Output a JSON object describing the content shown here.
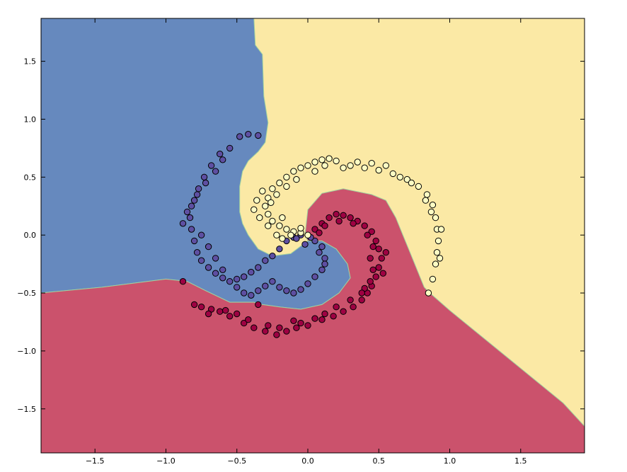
{
  "chart_data": {
    "type": "scatter",
    "title": "",
    "xlabel": "",
    "ylabel": "",
    "xlim": [
      -1.88,
      1.95
    ],
    "ylim": [
      -1.88,
      1.87
    ],
    "xticks": [
      -1.5,
      -1.0,
      -0.5,
      0.0,
      0.5,
      1.0,
      1.5
    ],
    "xtick_labels": [
      "−1.5",
      "−1.0",
      "−0.5",
      "0.0",
      "0.5",
      "1.0",
      "1.5"
    ],
    "yticks": [
      1.5,
      1.0,
      0.5,
      0.0,
      -0.5,
      -1.0,
      -1.5
    ],
    "ytick_labels": [
      "1.5",
      "1.0",
      "0.5",
      "0.0",
      "−0.5",
      "−1.0",
      "−1.5"
    ],
    "grid": false,
    "legend": "none",
    "classes": [
      {
        "point_color": "#5e4fa2",
        "region_color": "#6689be"
      },
      {
        "point_color": "#fdfdc4",
        "region_color": "#fbe9a5"
      },
      {
        "point_color": "#9e0142",
        "region_color": "#cb526c"
      }
    ],
    "decision_regions": {
      "blue": [
        [
          -1.88,
          1.87
        ],
        [
          -0.38,
          1.87
        ],
        [
          -0.37,
          1.64
        ],
        [
          -0.32,
          1.56
        ],
        [
          -0.31,
          1.2
        ],
        [
          -0.28,
          0.97
        ],
        [
          -0.3,
          0.8
        ],
        [
          -0.35,
          0.72
        ],
        [
          -0.42,
          0.64
        ],
        [
          -0.46,
          0.55
        ],
        [
          -0.48,
          0.42
        ],
        [
          -0.48,
          0.2
        ],
        [
          -0.46,
          0.1
        ],
        [
          -0.42,
          0.0
        ],
        [
          -0.35,
          -0.12
        ],
        [
          -0.25,
          -0.18
        ],
        [
          -0.12,
          -0.16
        ],
        [
          0.0,
          -0.05
        ],
        [
          0.1,
          -0.05
        ],
        [
          0.2,
          -0.12
        ],
        [
          0.28,
          -0.25
        ],
        [
          0.3,
          -0.37
        ],
        [
          0.22,
          -0.5
        ],
        [
          0.1,
          -0.6
        ],
        [
          -0.05,
          -0.64
        ],
        [
          -0.2,
          -0.62
        ],
        [
          -0.32,
          -0.6
        ],
        [
          -0.38,
          -0.58
        ],
        [
          -0.55,
          -0.58
        ],
        [
          -0.72,
          -0.48
        ],
        [
          -0.85,
          -0.4
        ],
        [
          -1.0,
          -0.38
        ],
        [
          -1.45,
          -0.45
        ],
        [
          -1.88,
          -0.5
        ]
      ],
      "red": [
        [
          -1.88,
          -0.5
        ],
        [
          -1.45,
          -0.45
        ],
        [
          -1.0,
          -0.38
        ],
        [
          -0.85,
          -0.4
        ],
        [
          -0.72,
          -0.48
        ],
        [
          -0.55,
          -0.58
        ],
        [
          -0.38,
          -0.58
        ],
        [
          -0.32,
          -0.6
        ],
        [
          -0.2,
          -0.62
        ],
        [
          -0.05,
          -0.64
        ],
        [
          0.1,
          -0.6
        ],
        [
          0.22,
          -0.5
        ],
        [
          0.3,
          -0.37
        ],
        [
          0.28,
          -0.25
        ],
        [
          0.2,
          -0.12
        ],
        [
          0.1,
          -0.05
        ],
        [
          0.0,
          -0.05
        ],
        [
          -0.02,
          0.0
        ],
        [
          0.0,
          0.22
        ],
        [
          0.1,
          0.36
        ],
        [
          0.25,
          0.4
        ],
        [
          0.45,
          0.35
        ],
        [
          0.55,
          0.3
        ],
        [
          0.62,
          0.15
        ],
        [
          0.67,
          0.0
        ],
        [
          0.72,
          -0.15
        ],
        [
          0.77,
          -0.3
        ],
        [
          0.82,
          -0.45
        ],
        [
          0.86,
          -0.5
        ],
        [
          1.0,
          -0.65
        ],
        [
          1.2,
          -0.85
        ],
        [
          1.5,
          -1.15
        ],
        [
          1.8,
          -1.45
        ],
        [
          1.95,
          -1.65
        ],
        [
          1.95,
          -1.88
        ],
        [
          -1.88,
          -1.88
        ]
      ]
    },
    "series": [
      {
        "name": "",
        "class_index": 0,
        "points": [
          [
            -0.05,
            0.0
          ],
          [
            -0.1,
            -0.02
          ],
          [
            -0.15,
            -0.05
          ],
          [
            -0.2,
            -0.12
          ],
          [
            -0.25,
            -0.18
          ],
          [
            -0.3,
            -0.22
          ],
          [
            -0.35,
            -0.28
          ],
          [
            -0.4,
            -0.32
          ],
          [
            -0.45,
            -0.36
          ],
          [
            -0.5,
            -0.38
          ],
          [
            -0.55,
            -0.4
          ],
          [
            -0.6,
            -0.37
          ],
          [
            -0.65,
            -0.33
          ],
          [
            -0.7,
            -0.28
          ],
          [
            -0.75,
            -0.22
          ],
          [
            -0.78,
            -0.15
          ],
          [
            -0.8,
            -0.05
          ],
          [
            -0.82,
            0.05
          ],
          [
            -0.83,
            0.15
          ],
          [
            -0.82,
            0.25
          ],
          [
            -0.78,
            0.35
          ],
          [
            -0.72,
            0.45
          ],
          [
            -0.65,
            0.55
          ],
          [
            -0.6,
            0.65
          ],
          [
            -0.55,
            0.75
          ],
          [
            -0.48,
            0.85
          ],
          [
            -0.42,
            0.87
          ],
          [
            -0.35,
            0.86
          ],
          [
            -0.62,
            0.7
          ],
          [
            -0.68,
            0.6
          ],
          [
            -0.73,
            0.5
          ],
          [
            -0.77,
            0.4
          ],
          [
            -0.8,
            0.3
          ],
          [
            -0.85,
            0.2
          ],
          [
            -0.88,
            0.1
          ],
          [
            -0.75,
            0.0
          ],
          [
            -0.7,
            -0.1
          ],
          [
            -0.65,
            -0.2
          ],
          [
            -0.6,
            -0.3
          ],
          [
            -0.5,
            -0.45
          ],
          [
            -0.45,
            -0.5
          ],
          [
            -0.4,
            -0.52
          ],
          [
            -0.35,
            -0.48
          ],
          [
            -0.3,
            -0.44
          ],
          [
            -0.25,
            -0.4
          ],
          [
            -0.2,
            -0.45
          ],
          [
            -0.15,
            -0.48
          ],
          [
            -0.1,
            -0.5
          ],
          [
            -0.05,
            -0.47
          ],
          [
            0.0,
            -0.42
          ],
          [
            0.05,
            -0.36
          ],
          [
            0.1,
            -0.3
          ],
          [
            0.12,
            -0.2
          ],
          [
            0.1,
            -0.1
          ],
          [
            0.05,
            -0.05
          ],
          [
            0.02,
            -0.02
          ],
          [
            -0.02,
            -0.08
          ],
          [
            -0.08,
            -0.03
          ],
          [
            0.08,
            -0.15
          ],
          [
            0.12,
            -0.25
          ]
        ]
      },
      {
        "name": "",
        "class_index": 1,
        "points": [
          [
            0.0,
            0.0
          ],
          [
            -0.05,
            0.02
          ],
          [
            -0.1,
            0.03
          ],
          [
            -0.15,
            0.05
          ],
          [
            -0.2,
            0.08
          ],
          [
            -0.25,
            0.12
          ],
          [
            -0.28,
            0.18
          ],
          [
            -0.3,
            0.25
          ],
          [
            -0.28,
            0.32
          ],
          [
            -0.25,
            0.4
          ],
          [
            -0.2,
            0.45
          ],
          [
            -0.15,
            0.5
          ],
          [
            -0.1,
            0.55
          ],
          [
            -0.05,
            0.58
          ],
          [
            0.0,
            0.6
          ],
          [
            0.05,
            0.63
          ],
          [
            0.1,
            0.65
          ],
          [
            0.15,
            0.66
          ],
          [
            0.2,
            0.64
          ],
          [
            0.3,
            0.6
          ],
          [
            0.4,
            0.58
          ],
          [
            0.5,
            0.56
          ],
          [
            0.6,
            0.53
          ],
          [
            0.7,
            0.48
          ],
          [
            0.78,
            0.42
          ],
          [
            0.84,
            0.35
          ],
          [
            0.88,
            0.26
          ],
          [
            0.9,
            0.15
          ],
          [
            0.91,
            0.05
          ],
          [
            0.92,
            -0.05
          ],
          [
            0.91,
            -0.15
          ],
          [
            0.9,
            -0.25
          ],
          [
            0.88,
            -0.38
          ],
          [
            0.85,
            -0.5
          ],
          [
            -0.32,
            0.38
          ],
          [
            -0.36,
            0.3
          ],
          [
            -0.38,
            0.22
          ],
          [
            -0.34,
            0.15
          ],
          [
            -0.28,
            0.08
          ],
          [
            -0.22,
            0.0
          ],
          [
            -0.18,
            -0.03
          ],
          [
            -0.12,
            0.0
          ],
          [
            0.05,
            0.55
          ],
          [
            0.12,
            0.6
          ],
          [
            0.25,
            0.58
          ],
          [
            0.35,
            0.63
          ],
          [
            0.45,
            0.62
          ],
          [
            0.55,
            0.6
          ],
          [
            0.65,
            0.5
          ],
          [
            0.73,
            0.45
          ],
          [
            -0.08,
            0.48
          ],
          [
            -0.15,
            0.42
          ],
          [
            -0.22,
            0.35
          ],
          [
            -0.26,
            0.28
          ],
          [
            0.83,
            0.3
          ],
          [
            0.87,
            0.2
          ],
          [
            0.94,
            0.05
          ],
          [
            0.93,
            -0.2
          ],
          [
            -0.05,
            0.06
          ],
          [
            -0.18,
            0.15
          ]
        ]
      },
      {
        "name": "",
        "class_index": 2,
        "points": [
          [
            0.05,
            0.05
          ],
          [
            0.1,
            0.1
          ],
          [
            0.15,
            0.15
          ],
          [
            0.2,
            0.18
          ],
          [
            0.25,
            0.17
          ],
          [
            0.3,
            0.15
          ],
          [
            0.35,
            0.12
          ],
          [
            0.4,
            0.08
          ],
          [
            0.45,
            0.03
          ],
          [
            0.48,
            -0.05
          ],
          [
            0.5,
            -0.12
          ],
          [
            0.52,
            -0.2
          ],
          [
            0.5,
            -0.28
          ],
          [
            0.48,
            -0.36
          ],
          [
            0.45,
            -0.44
          ],
          [
            0.42,
            -0.5
          ],
          [
            0.38,
            -0.56
          ],
          [
            0.32,
            -0.62
          ],
          [
            0.25,
            -0.66
          ],
          [
            0.18,
            -0.7
          ],
          [
            0.1,
            -0.73
          ],
          [
            0.0,
            -0.78
          ],
          [
            -0.08,
            -0.8
          ],
          [
            -0.15,
            -0.83
          ],
          [
            -0.22,
            -0.86
          ],
          [
            -0.3,
            -0.83
          ],
          [
            -0.38,
            -0.8
          ],
          [
            -0.45,
            -0.76
          ],
          [
            -0.55,
            -0.7
          ],
          [
            -0.62,
            -0.66
          ],
          [
            -0.68,
            -0.64
          ],
          [
            -0.75,
            -0.62
          ],
          [
            -0.8,
            -0.6
          ],
          [
            -0.88,
            -0.4
          ],
          [
            -0.35,
            -0.6
          ],
          [
            0.12,
            0.08
          ],
          [
            0.22,
            0.12
          ],
          [
            0.32,
            0.1
          ],
          [
            0.42,
            0.0
          ],
          [
            0.46,
            -0.1
          ],
          [
            0.44,
            -0.2
          ],
          [
            0.46,
            -0.3
          ],
          [
            0.44,
            -0.4
          ],
          [
            0.4,
            -0.46
          ],
          [
            0.3,
            -0.56
          ],
          [
            0.2,
            -0.62
          ],
          [
            0.12,
            -0.68
          ],
          [
            0.05,
            -0.72
          ],
          [
            -0.05,
            -0.76
          ],
          [
            -0.1,
            -0.74
          ],
          [
            -0.2,
            -0.8
          ],
          [
            -0.28,
            -0.78
          ],
          [
            -0.42,
            -0.73
          ],
          [
            -0.5,
            -0.68
          ],
          [
            -0.58,
            -0.65
          ],
          [
            -0.7,
            -0.68
          ],
          [
            0.55,
            -0.15
          ],
          [
            0.53,
            -0.33
          ],
          [
            0.08,
            0.02
          ],
          [
            0.38,
            -0.5
          ]
        ]
      }
    ]
  }
}
